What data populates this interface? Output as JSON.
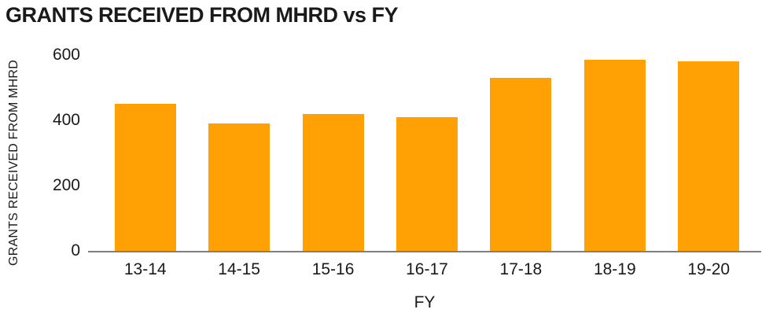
{
  "title": "GRANTS RECEIVED FROM MHRD vs FY",
  "axes": {
    "x_title": "FY",
    "y_title": "GRANTS RECEIVED FROM MHRD"
  },
  "colors": {
    "bar": "#FFA005",
    "axis_line": "#7f7f7f",
    "text": "#1a1a1a",
    "background": "#ffffff"
  },
  "chart_data": {
    "type": "bar",
    "title": "GRANTS RECEIVED FROM MHRD vs FY",
    "xlabel": "FY",
    "ylabel": "GRANTS RECEIVED FROM MHRD",
    "categories": [
      "13-14",
      "14-15",
      "15-16",
      "16-17",
      "17-18",
      "18-19",
      "19-20"
    ],
    "values": [
      450,
      390,
      420,
      410,
      530,
      585,
      580
    ],
    "ylim": [
      0,
      600
    ],
    "yticks": [
      600,
      400,
      200,
      0
    ],
    "grid": false,
    "legend": false,
    "bar_color": "#FFA005"
  }
}
